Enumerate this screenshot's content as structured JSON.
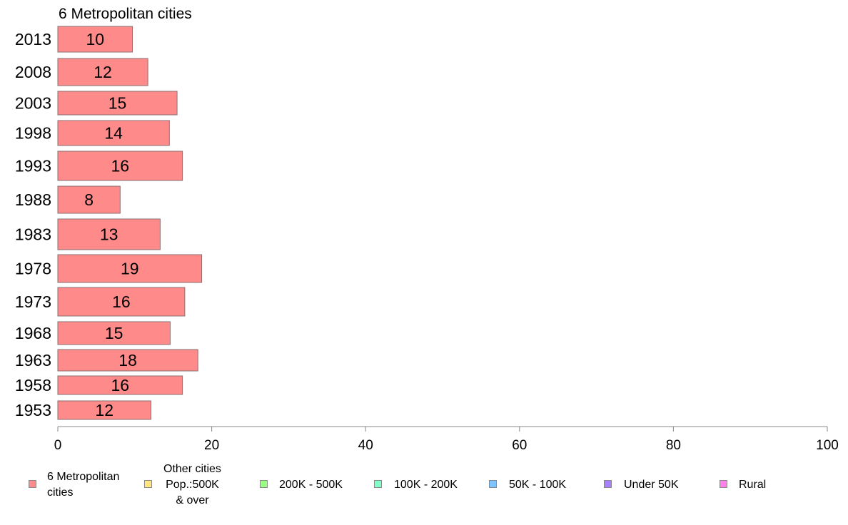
{
  "chart_data": {
    "type": "bar",
    "orientation": "horizontal",
    "title": "6 Metropolitan cities",
    "categories": [
      "2013",
      "2008",
      "2003",
      "1998",
      "1993",
      "1988",
      "1983",
      "1978",
      "1973",
      "1968",
      "1963",
      "1958",
      "1953"
    ],
    "series": [
      {
        "name": "6 Metropolitan\n cities",
        "color": "#ff8a8a",
        "values": [
          9.7,
          11.7,
          15.5,
          14.5,
          16.2,
          8.1,
          13.3,
          18.7,
          16.5,
          14.6,
          18.2,
          16.2,
          12.1
        ],
        "labels": [
          "10",
          "12",
          "15",
          "14",
          "16",
          "8",
          "13",
          "19",
          "16",
          "15",
          "18",
          "16",
          "12"
        ]
      }
    ],
    "xlim": [
      0,
      100
    ],
    "x_ticks": [
      0,
      20,
      40,
      60,
      80,
      100
    ],
    "x_tick_labels": [
      "0",
      "20",
      "40",
      "60",
      "80",
      "100"
    ],
    "xlabel": "",
    "ylabel": "",
    "grid": false,
    "legend_position": "bottom"
  },
  "legend": [
    {
      "label": "6 Metropolitan\n cities",
      "color": "#ff8a8a"
    },
    {
      "label": "Other cities\nPop.:500K\n & over",
      "color": "#ffe680"
    },
    {
      "label": "200K - 500K",
      "color": "#99ff80"
    },
    {
      "label": "100K - 200K",
      "color": "#80ffc8"
    },
    {
      "label": "50K - 100K",
      "color": "#80c4ff"
    },
    {
      "label": "Under 50K",
      "color": "#a680ff"
    },
    {
      "label": "Rural",
      "color": "#ff80e6"
    }
  ]
}
